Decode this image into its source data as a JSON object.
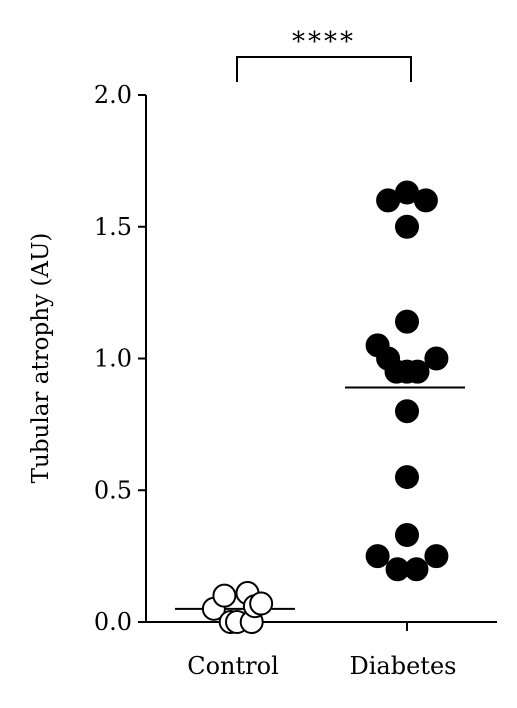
{
  "chart_data": {
    "type": "scatter",
    "ylabel": "Tubular atrophy (AU)",
    "ylim": [
      0,
      2.0
    ],
    "yticks": [
      0.0,
      0.5,
      1.0,
      1.5,
      2.0
    ],
    "ytick_labels": [
      "0.0",
      "0.5",
      "1.0",
      "1.5",
      "2.0"
    ],
    "categories": [
      "Control",
      "Diabetes"
    ],
    "series": [
      {
        "name": "Control",
        "marker": "open-circle",
        "color": "#000000",
        "points": [
          {
            "jitter": -0.22,
            "y": 0.05
          },
          {
            "jitter": -0.12,
            "y": 0.1
          },
          {
            "jitter": -0.06,
            "y": 0.0
          },
          {
            "jitter": 0.0,
            "y": 0.0
          },
          {
            "jitter": 0.1,
            "y": 0.11
          },
          {
            "jitter": 0.14,
            "y": 0.0
          },
          {
            "jitter": 0.17,
            "y": 0.06
          },
          {
            "jitter": 0.23,
            "y": 0.07
          }
        ],
        "mean": 0.05
      },
      {
        "name": "Diabetes",
        "marker": "filled-circle",
        "color": "#000000",
        "points": [
          {
            "jitter": -0.18,
            "y": 1.6
          },
          {
            "jitter": 0.0,
            "y": 1.63
          },
          {
            "jitter": 0.18,
            "y": 1.6
          },
          {
            "jitter": 0.0,
            "y": 1.5
          },
          {
            "jitter": 0.0,
            "y": 1.14
          },
          {
            "jitter": -0.28,
            "y": 1.05
          },
          {
            "jitter": -0.18,
            "y": 1.0
          },
          {
            "jitter": 0.28,
            "y": 1.0
          },
          {
            "jitter": -0.1,
            "y": 0.95
          },
          {
            "jitter": 0.0,
            "y": 0.95
          },
          {
            "jitter": 0.1,
            "y": 0.95
          },
          {
            "jitter": 0.0,
            "y": 0.8
          },
          {
            "jitter": 0.0,
            "y": 0.55
          },
          {
            "jitter": 0.0,
            "y": 0.33
          },
          {
            "jitter": -0.28,
            "y": 0.25
          },
          {
            "jitter": 0.28,
            "y": 0.25
          },
          {
            "jitter": -0.09,
            "y": 0.2
          },
          {
            "jitter": 0.09,
            "y": 0.2
          }
        ],
        "mean": 0.89
      }
    ],
    "significance": {
      "between": [
        "Control",
        "Diabetes"
      ],
      "label": "****"
    }
  }
}
